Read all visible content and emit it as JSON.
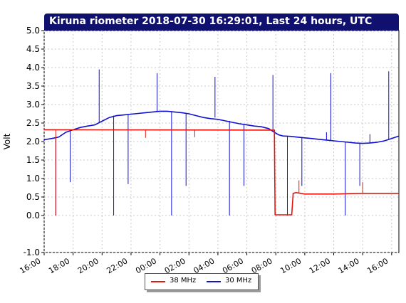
{
  "chart_data": {
    "type": "line",
    "title": "Kiruna riometer 2018-07-30 16:29:01, Last 24 hours, UTC",
    "ylabel": "Volt",
    "xlabel": "",
    "ylim": [
      -1.0,
      5.0
    ],
    "xlim": [
      0,
      24.5
    ],
    "grid": true,
    "legend_placement": "bottom-center",
    "y_ticks": [
      "-1.0",
      "0.0",
      "0.5",
      "1.0",
      "1.5",
      "2.0",
      "2.5",
      "3.0",
      "3.5",
      "4.0",
      "4.5",
      "5.0"
    ],
    "x_ticks": [
      "16:00",
      "18:00",
      "20:00",
      "22:00",
      "00:00",
      "02:00",
      "04:00",
      "06:00",
      "08:00",
      "10:00",
      "12:00",
      "14:00",
      "16:00"
    ],
    "series": [
      {
        "name": "38 MHz",
        "color": "#e8140c",
        "x": [
          0,
          15.9,
          15.95,
          16.05,
          16.3,
          16.6,
          16.9,
          17.1,
          17.2,
          17.4,
          18,
          20,
          22,
          24.5
        ],
        "y": [
          2.32,
          2.31,
          0.02,
          0.02,
          0.02,
          0.02,
          0.02,
          0.02,
          0.6,
          0.62,
          0.58,
          0.58,
          0.6,
          0.6
        ],
        "spikes": [
          [
            0.8,
            2.32,
            0.0
          ],
          [
            7.0,
            2.32,
            2.1
          ],
          [
            10.4,
            2.32,
            2.12
          ],
          [
            17.6,
            0.6,
            0.95
          ],
          [
            22.0,
            0.6,
            0.9
          ]
        ]
      },
      {
        "name": "30 MHz",
        "color": "#1010d0",
        "x": [
          0,
          0.5,
          1,
          1.5,
          2,
          2.5,
          3,
          3.5,
          4,
          4.5,
          5,
          5.5,
          6,
          6.5,
          7,
          7.5,
          8,
          8.5,
          9,
          9.5,
          10,
          10.5,
          11,
          11.5,
          12,
          12.5,
          13,
          13.5,
          14,
          14.5,
          15,
          15.5,
          15.9,
          16.2,
          16.5,
          17,
          17.5,
          18,
          18.5,
          19,
          19.5,
          20,
          20.5,
          21,
          21.5,
          22,
          22.5,
          23,
          23.5,
          24,
          24.5
        ],
        "y": [
          2.05,
          2.08,
          2.12,
          2.25,
          2.32,
          2.38,
          2.42,
          2.45,
          2.55,
          2.65,
          2.7,
          2.72,
          2.74,
          2.76,
          2.78,
          2.8,
          2.82,
          2.82,
          2.8,
          2.78,
          2.75,
          2.7,
          2.65,
          2.62,
          2.6,
          2.56,
          2.52,
          2.48,
          2.45,
          2.42,
          2.4,
          2.35,
          2.25,
          2.18,
          2.15,
          2.14,
          2.12,
          2.1,
          2.08,
          2.06,
          2.04,
          2.02,
          2.0,
          1.98,
          1.96,
          1.95,
          1.96,
          1.98,
          2.02,
          2.08,
          2.15
        ],
        "spikes": [
          [
            0.8,
            2.08,
            0.0
          ],
          [
            1.8,
            2.28,
            0.9
          ],
          [
            3.8,
            2.5,
            3.95
          ],
          [
            4.8,
            2.7,
            0.0
          ],
          [
            5.8,
            2.72,
            0.85
          ],
          [
            7.8,
            2.8,
            3.85
          ],
          [
            8.8,
            2.8,
            0.0
          ],
          [
            9.8,
            2.76,
            0.8
          ],
          [
            11.8,
            2.65,
            3.75
          ],
          [
            12.8,
            2.56,
            0.0
          ],
          [
            13.8,
            2.45,
            0.8
          ],
          [
            15.8,
            2.3,
            3.8
          ],
          [
            16.8,
            2.14,
            0.0
          ],
          [
            17.8,
            2.12,
            0.8
          ],
          [
            19.5,
            2.04,
            2.25
          ],
          [
            19.8,
            2.02,
            3.85
          ],
          [
            20.8,
            1.98,
            0.0
          ],
          [
            21.8,
            1.96,
            0.8
          ],
          [
            22.5,
            1.96,
            2.2
          ],
          [
            23.8,
            2.05,
            3.9
          ]
        ]
      }
    ]
  }
}
